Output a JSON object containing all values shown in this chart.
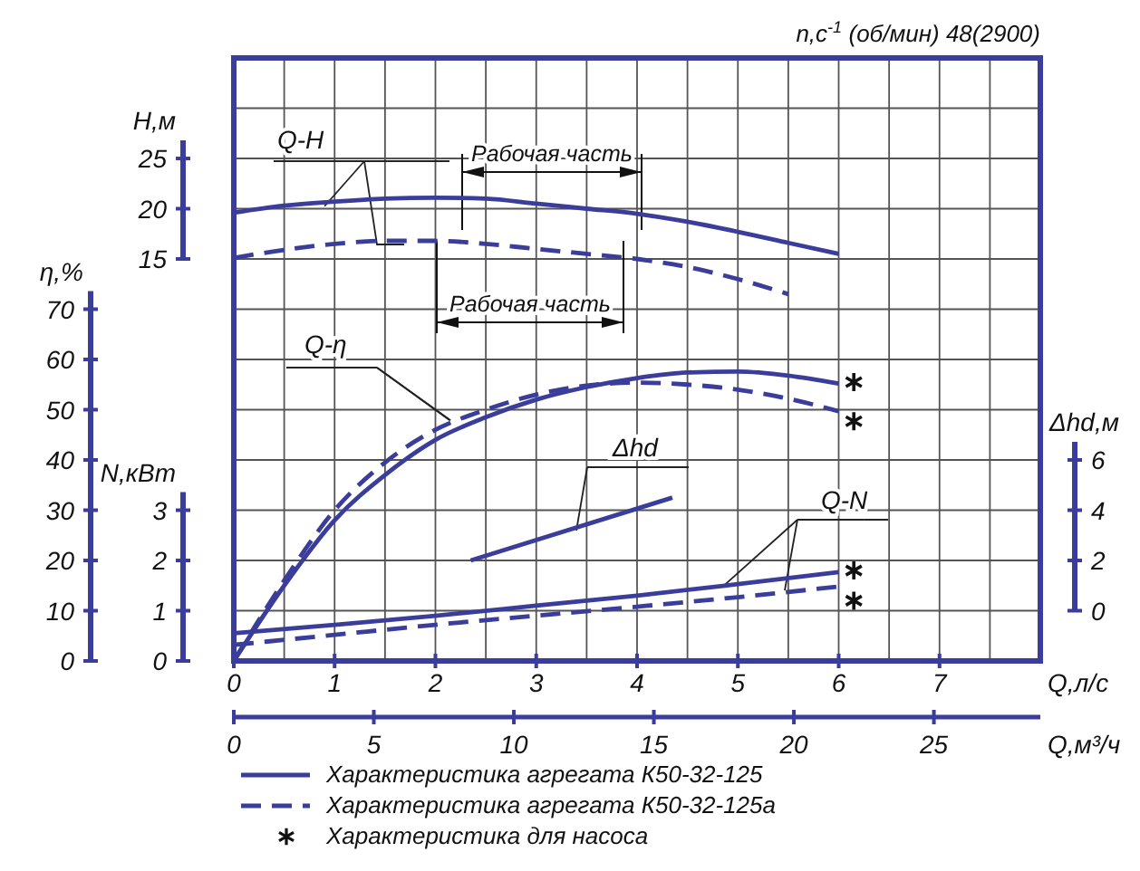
{
  "chart_data": [
    {
      "type": "line",
      "title": "n,с$^{-1}$ (об/мин) 48(2900)",
      "xlabel": "Q,л/с",
      "x2label": "Q,м³/ч",
      "ylabel": "η,%",
      "y2label": "H,м",
      "y3label": "N,кВт",
      "xlim": [
        0,
        8
      ],
      "xticks": [
        0,
        {
          "value": 0.5,
          "label": null
        },
        1,
        {
          "value": 1.5,
          "label": null
        },
        2,
        {
          "value": 2.5,
          "label": null
        },
        3,
        {
          "value": 3.5,
          "label": null
        },
        4,
        {
          "value": 4.5,
          "label": null
        },
        5,
        {
          "value": 5.5,
          "label": null
        },
        6,
        {
          "value": 6.5,
          "label": null
        },
        7,
        {
          "value": 7.5,
          "label": null
        },
        {
          "value": 8,
          "label": null
        }
      ],
      "x2lim": [
        0,
        28.8
      ],
      "x2ticks": [
        0,
        5,
        10,
        15,
        20,
        25
      ],
      "ylim": [
        0,
        120
      ],
      "yticks": [
        0,
        10,
        20,
        30,
        40,
        50,
        60,
        70,
        {
          "value": 80,
          "label": null
        },
        {
          "value": 90,
          "label": null
        },
        {
          "value": 100,
          "label": null
        },
        {
          "value": 110,
          "label": null
        },
        {
          "value": 120,
          "label": null
        }
      ],
      "y2lim": [
        -25,
        35
      ],
      "y2ticks": [
        15,
        20,
        25
      ],
      "y3lim": [
        0,
        12
      ],
      "y3ticks": [
        0,
        1,
        2,
        3
      ],
      "grid": true,
      "legend": "bottom",
      "series": [
        {
          "name": "Характеристика агрегата К50-32-125",
          "color": "#3a3d9a",
          "axis": "y2",
          "line_style": "solid",
          "x": [
            0,
            0.5,
            1,
            1.5,
            2,
            2.5,
            3,
            3.5,
            4,
            4.5,
            5,
            5.5,
            6
          ],
          "values": [
            19.6,
            20.3,
            20.7,
            21.0,
            21.1,
            21.0,
            20.5,
            20.0,
            19.5,
            18.7,
            17.7,
            16.6,
            15.5
          ]
        },
        {
          "name": "Характеристика агрегата К50-32-125а",
          "color": "#3a3d9a",
          "axis": "y2",
          "line_style": "dashed",
          "x": [
            0,
            0.5,
            1,
            1.5,
            2,
            2.5,
            3,
            3.5,
            4,
            4.5,
            5,
            5.5
          ],
          "values": [
            15.1,
            15.9,
            16.5,
            16.8,
            16.8,
            16.5,
            16.0,
            15.5,
            15.0,
            14.2,
            13.0,
            11.5
          ]
        },
        {
          "color": "#3a3d9a",
          "line_style": "solid",
          "x": [
            0,
            0.5,
            1,
            1.5,
            2,
            2.5,
            3,
            3.5,
            4,
            4.5,
            5,
            5.5,
            6
          ],
          "values": [
            0,
            15,
            28,
            37,
            44,
            48.5,
            52,
            54.5,
            56.3,
            57.4,
            57.6,
            56.8,
            55.2
          ]
        },
        {
          "color": "#3a3d9a",
          "line_style": "dashed",
          "x": [
            0,
            0.5,
            1,
            1.5,
            2,
            2.5,
            3,
            3.5,
            4,
            4.5,
            5,
            5.5,
            6
          ],
          "values": [
            0,
            16,
            30,
            39.5,
            46,
            50,
            53,
            54.8,
            55.4,
            55,
            54,
            52.2,
            49.7
          ]
        },
        {
          "color": "#3a3d9a",
          "axis": "y3",
          "line_style": "solid",
          "x": [
            0,
            1,
            2,
            3,
            4,
            5,
            6
          ],
          "values": [
            0.55,
            0.72,
            0.9,
            1.1,
            1.3,
            1.53,
            1.77
          ]
        },
        {
          "color": "#3a3d9a",
          "axis": "y3",
          "line_style": "dashed",
          "x": [
            0,
            1,
            2,
            3,
            4,
            5,
            6
          ],
          "values": [
            0.32,
            0.52,
            0.72,
            0.9,
            1.08,
            1.27,
            1.48
          ]
        },
        {
          "type": "scatter",
          "marker": "cross",
          "name": "Характеристика для насоса",
          "color": "#111111",
          "x": [
            6.15,
            6.15
          ],
          "values": [
            55.5,
            47.7
          ]
        },
        {
          "type": "scatter",
          "marker": "cross",
          "color": "#111111",
          "axis": "y3",
          "x": [
            6.15,
            6.15
          ],
          "values": [
            1.8,
            1.2
          ]
        }
      ],
      "annotations": [
        {
          "text": "Q-H",
          "x": 0.9,
          "y": 90.5
        },
        {
          "text": "Q-η",
          "x": 2.15,
          "y": 47.9
        },
        "Δhd",
        {
          "text": "Q-N",
          "x": 4.85,
          "y": 14.8
        },
        "Рабочая часть",
        "Рабочая часть"
      ]
    },
    {
      "type": "line",
      "ylabel": "Δhd,м",
      "xlim": [
        0,
        8
      ],
      "ylim": [
        -2,
        22
      ],
      "yticks": [
        0,
        2,
        4,
        6
      ],
      "tick_labels": "y",
      "series": [
        {
          "color": "#3a3d9a",
          "line_style": "solid",
          "x": [
            2.35,
            4.35
          ],
          "values": [
            2.0,
            4.5
          ]
        }
      ]
    }
  ]
}
